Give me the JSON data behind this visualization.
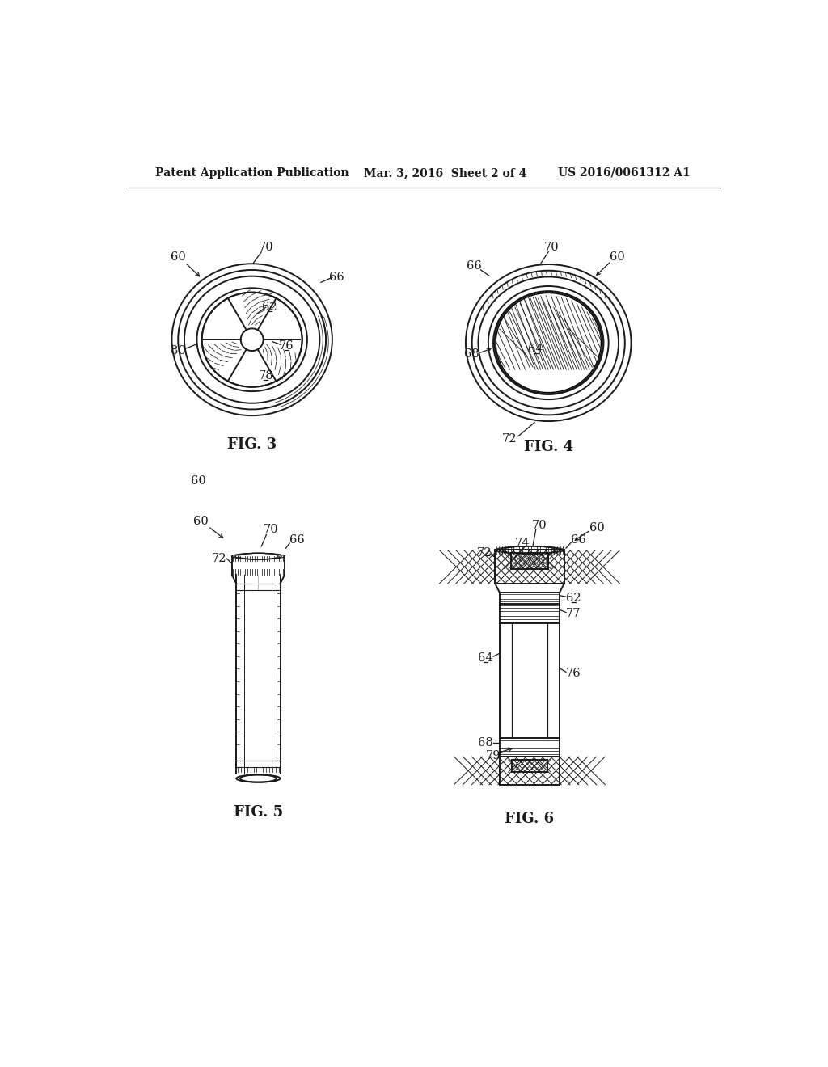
{
  "bg_color": "#ffffff",
  "line_color": "#1a1a1a",
  "header_text": "Patent Application Publication",
  "header_date": "Mar. 3, 2016  Sheet 2 of 4",
  "header_patent": "US 2016/0061312 A1",
  "fig3_label": "FIG. 3",
  "fig4_label": "FIG. 4",
  "fig5_label": "FIG. 5",
  "fig6_label": "FIG. 6"
}
